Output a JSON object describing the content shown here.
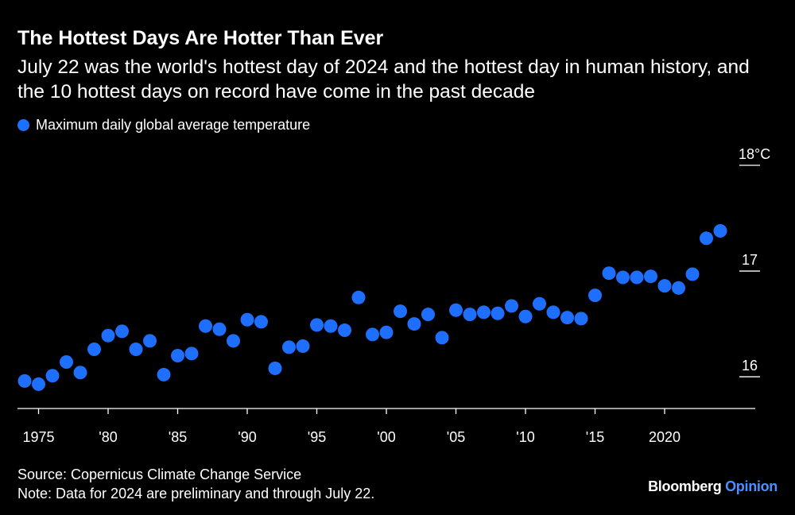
{
  "header": {
    "title": "The Hottest Days Are Hotter Than Ever",
    "subtitle": "July 22 was the world's hottest day of 2024 and the hottest day in human history, and the 10 hottest days on record have come in the past decade"
  },
  "legend": {
    "label": "Maximum daily global average temperature"
  },
  "footer": {
    "source": "Source: Copernicus Climate Change Service",
    "note": "Note: Data for 2024 are preliminary and through July 22.",
    "brand_main": "Bloomberg",
    "brand_sub": "Opinion"
  },
  "colors": {
    "background": "#000000",
    "dot": "#1f6fff",
    "text": "#ffffff",
    "brand_accent": "#4a90ff"
  },
  "chart_data": {
    "type": "scatter",
    "title": "The Hottest Days Are Hotter Than Ever",
    "xlabel": "",
    "ylabel": "",
    "xlim": [
      1974,
      2024
    ],
    "ylim": [
      15.7,
      18
    ],
    "y_unit": "°C",
    "x_ticks": [
      {
        "value": 1975,
        "label": "1975"
      },
      {
        "value": 1980,
        "label": "'80"
      },
      {
        "value": 1985,
        "label": "'85"
      },
      {
        "value": 1990,
        "label": "'90"
      },
      {
        "value": 1995,
        "label": "'95"
      },
      {
        "value": 2000,
        "label": "'00"
      },
      {
        "value": 2005,
        "label": "'05"
      },
      {
        "value": 2010,
        "label": "'10"
      },
      {
        "value": 2015,
        "label": "'15"
      },
      {
        "value": 2020,
        "label": "2020"
      }
    ],
    "y_ticks": [
      {
        "value": 18,
        "label": "18°C"
      },
      {
        "value": 17,
        "label": "17"
      },
      {
        "value": 16,
        "label": "16"
      }
    ],
    "series": [
      {
        "name": "Maximum daily global average temperature",
        "x": [
          1974,
          1975,
          1976,
          1977,
          1978,
          1979,
          1980,
          1981,
          1982,
          1983,
          1984,
          1985,
          1986,
          1987,
          1988,
          1989,
          1990,
          1991,
          1992,
          1993,
          1994,
          1995,
          1996,
          1997,
          1998,
          1999,
          2000,
          2001,
          2002,
          2003,
          2004,
          2005,
          2006,
          2007,
          2008,
          2009,
          2010,
          2011,
          2012,
          2013,
          2014,
          2015,
          2016,
          2017,
          2018,
          2019,
          2020,
          2021,
          2022,
          2023,
          2024
        ],
        "values": [
          15.96,
          15.93,
          16.01,
          16.14,
          16.04,
          16.26,
          16.39,
          16.43,
          16.26,
          16.34,
          16.02,
          16.2,
          16.22,
          16.48,
          16.45,
          16.34,
          16.54,
          16.52,
          16.08,
          16.28,
          16.29,
          16.49,
          16.48,
          16.44,
          16.75,
          16.4,
          16.42,
          16.62,
          16.5,
          16.59,
          16.37,
          16.63,
          16.59,
          16.61,
          16.6,
          16.67,
          16.57,
          16.69,
          16.61,
          16.56,
          16.55,
          16.77,
          16.98,
          16.94,
          16.94,
          16.95,
          16.86,
          16.84,
          16.97,
          17.31,
          17.38
        ]
      }
    ]
  }
}
